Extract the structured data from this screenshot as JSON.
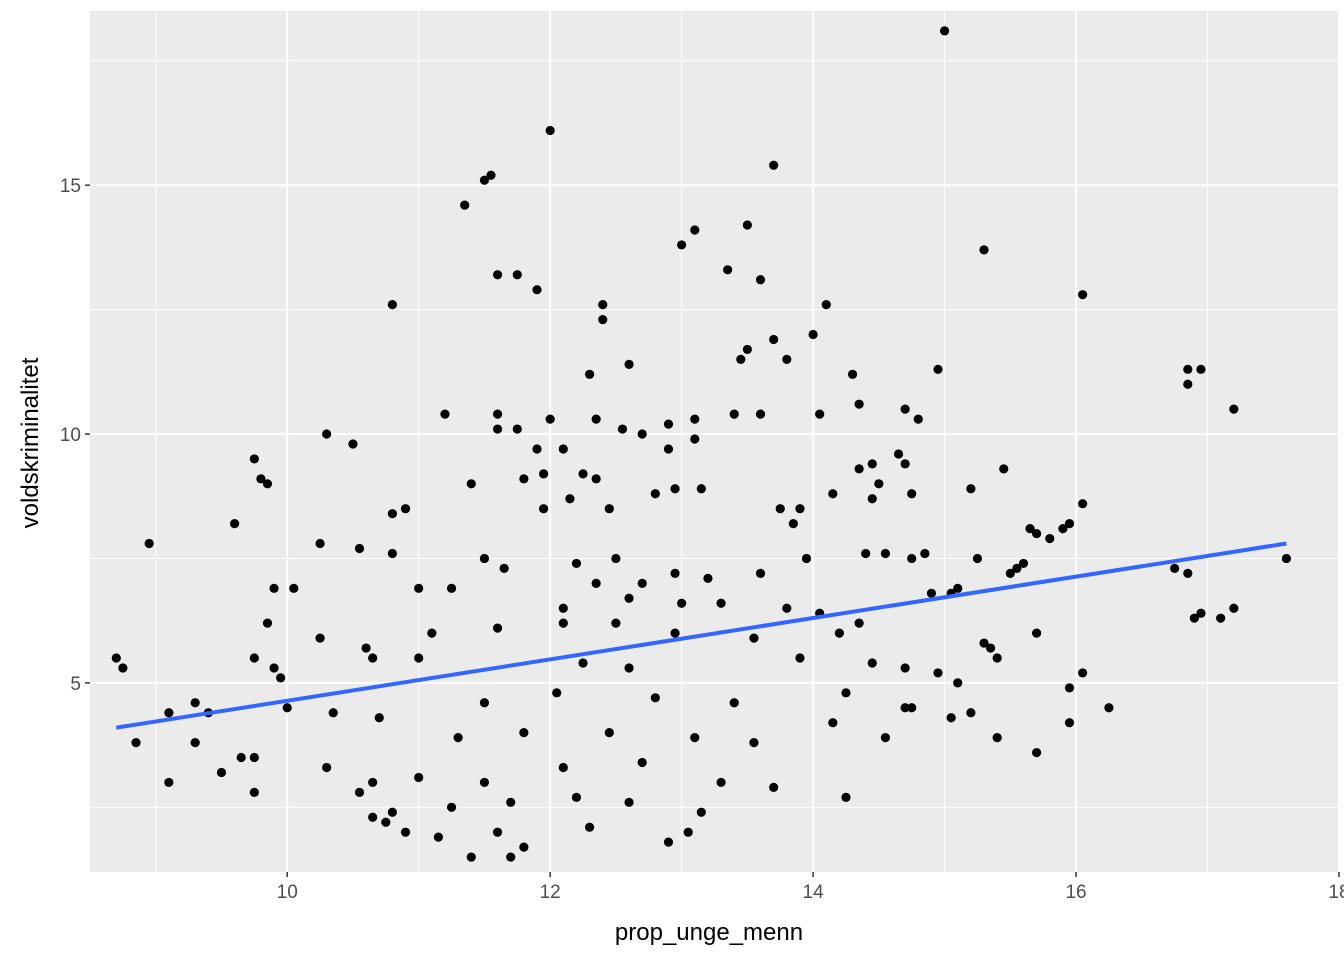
{
  "chart_data": {
    "type": "scatter",
    "xlabel": "prop_unge_menn",
    "ylabel": "voldskriminalitet",
    "xlim": [
      8.5,
      18.0
    ],
    "ylim": [
      1.2,
      18.5
    ],
    "x_ticks": [
      10,
      12,
      14,
      16,
      18
    ],
    "y_ticks": [
      5,
      10,
      15
    ],
    "grid": true,
    "panel_color": "#ebebeb",
    "grid_color": "#ffffff",
    "point_color": "#000000",
    "trend_color": "#3366ff",
    "trend_line": {
      "x": [
        8.7,
        17.6
      ],
      "y": [
        4.1,
        7.8
      ]
    },
    "points": [
      [
        15.0,
        18.1
      ],
      [
        12.0,
        16.1
      ],
      [
        11.5,
        15.1
      ],
      [
        11.55,
        15.2
      ],
      [
        13.7,
        15.4
      ],
      [
        11.35,
        14.6
      ],
      [
        13.5,
        14.2
      ],
      [
        13.1,
        14.1
      ],
      [
        13.0,
        13.8
      ],
      [
        15.3,
        13.7
      ],
      [
        11.6,
        13.2
      ],
      [
        11.75,
        13.2
      ],
      [
        13.35,
        13.3
      ],
      [
        13.6,
        13.1
      ],
      [
        11.9,
        12.9
      ],
      [
        16.05,
        12.8
      ],
      [
        10.8,
        12.6
      ],
      [
        12.4,
        12.6
      ],
      [
        14.1,
        12.6
      ],
      [
        12.4,
        12.3
      ],
      [
        14.0,
        12.0
      ],
      [
        13.7,
        11.9
      ],
      [
        13.5,
        11.7
      ],
      [
        13.45,
        11.5
      ],
      [
        13.8,
        11.5
      ],
      [
        12.6,
        11.4
      ],
      [
        14.95,
        11.3
      ],
      [
        16.85,
        11.3
      ],
      [
        16.95,
        11.3
      ],
      [
        12.3,
        11.2
      ],
      [
        14.3,
        11.2
      ],
      [
        16.85,
        11.0
      ],
      [
        14.35,
        10.6
      ],
      [
        17.2,
        10.5
      ],
      [
        14.7,
        10.5
      ],
      [
        11.2,
        10.4
      ],
      [
        11.6,
        10.4
      ],
      [
        13.4,
        10.4
      ],
      [
        13.6,
        10.4
      ],
      [
        14.05,
        10.4
      ],
      [
        14.8,
        10.3
      ],
      [
        12.0,
        10.3
      ],
      [
        12.35,
        10.3
      ],
      [
        13.1,
        10.3
      ],
      [
        12.9,
        10.2
      ],
      [
        11.6,
        10.1
      ],
      [
        11.75,
        10.1
      ],
      [
        12.55,
        10.1
      ],
      [
        12.7,
        10.0
      ],
      [
        10.3,
        10.0
      ],
      [
        13.1,
        9.9
      ],
      [
        10.5,
        9.8
      ],
      [
        12.9,
        9.7
      ],
      [
        11.9,
        9.7
      ],
      [
        12.1,
        9.7
      ],
      [
        9.75,
        9.5
      ],
      [
        11.95,
        9.2
      ],
      [
        12.25,
        9.2
      ],
      [
        12.35,
        9.1
      ],
      [
        11.4,
        9.0
      ],
      [
        11.8,
        9.1
      ],
      [
        9.8,
        9.1
      ],
      [
        9.85,
        9.0
      ],
      [
        15.45,
        9.3
      ],
      [
        14.35,
        9.3
      ],
      [
        14.45,
        9.4
      ],
      [
        14.65,
        9.6
      ],
      [
        14.7,
        9.4
      ],
      [
        14.5,
        9.0
      ],
      [
        12.8,
        8.8
      ],
      [
        12.95,
        8.9
      ],
      [
        13.15,
        8.9
      ],
      [
        12.15,
        8.7
      ],
      [
        11.95,
        8.5
      ],
      [
        12.45,
        8.5
      ],
      [
        13.75,
        8.5
      ],
      [
        13.9,
        8.5
      ],
      [
        10.8,
        8.4
      ],
      [
        10.9,
        8.5
      ],
      [
        14.15,
        8.8
      ],
      [
        14.45,
        8.7
      ],
      [
        14.75,
        8.8
      ],
      [
        15.2,
        8.9
      ],
      [
        16.05,
        8.6
      ],
      [
        13.85,
        8.2
      ],
      [
        9.6,
        8.2
      ],
      [
        15.65,
        8.1
      ],
      [
        15.9,
        8.1
      ],
      [
        15.95,
        8.2
      ],
      [
        15.7,
        8.0
      ],
      [
        15.8,
        7.9
      ],
      [
        8.95,
        7.8
      ],
      [
        10.25,
        7.8
      ],
      [
        10.55,
        7.7
      ],
      [
        10.8,
        7.6
      ],
      [
        12.5,
        7.5
      ],
      [
        12.2,
        7.4
      ],
      [
        11.65,
        7.3
      ],
      [
        11.5,
        7.5
      ],
      [
        14.4,
        7.6
      ],
      [
        14.55,
        7.6
      ],
      [
        14.75,
        7.5
      ],
      [
        14.85,
        7.6
      ],
      [
        13.95,
        7.5
      ],
      [
        13.6,
        7.2
      ],
      [
        13.2,
        7.1
      ],
      [
        12.35,
        7.0
      ],
      [
        12.7,
        7.0
      ],
      [
        12.95,
        7.2
      ],
      [
        11.0,
        6.9
      ],
      [
        11.25,
        6.9
      ],
      [
        15.25,
        7.5
      ],
      [
        15.5,
        7.2
      ],
      [
        15.55,
        7.3
      ],
      [
        15.6,
        7.4
      ],
      [
        16.75,
        7.3
      ],
      [
        16.85,
        7.2
      ],
      [
        17.6,
        7.5
      ],
      [
        9.9,
        6.9
      ],
      [
        10.05,
        6.9
      ],
      [
        12.1,
        6.5
      ],
      [
        12.6,
        6.7
      ],
      [
        13.0,
        6.6
      ],
      [
        13.3,
        6.6
      ],
      [
        13.8,
        6.5
      ],
      [
        14.05,
        6.4
      ],
      [
        14.9,
        6.8
      ],
      [
        15.05,
        6.8
      ],
      [
        15.1,
        6.9
      ],
      [
        16.95,
        6.4
      ],
      [
        16.9,
        6.3
      ],
      [
        17.1,
        6.3
      ],
      [
        17.2,
        6.5
      ],
      [
        9.85,
        6.2
      ],
      [
        11.1,
        6.0
      ],
      [
        11.6,
        6.1
      ],
      [
        12.1,
        6.2
      ],
      [
        12.5,
        6.2
      ],
      [
        12.95,
        6.0
      ],
      [
        13.55,
        5.9
      ],
      [
        14.2,
        6.0
      ],
      [
        14.35,
        6.2
      ],
      [
        15.3,
        5.8
      ],
      [
        15.35,
        5.7
      ],
      [
        15.7,
        6.0
      ],
      [
        15.4,
        5.5
      ],
      [
        10.25,
        5.9
      ],
      [
        10.6,
        5.7
      ],
      [
        10.65,
        5.5
      ],
      [
        11.0,
        5.5
      ],
      [
        12.25,
        5.4
      ],
      [
        12.6,
        5.3
      ],
      [
        13.9,
        5.5
      ],
      [
        14.45,
        5.4
      ],
      [
        14.7,
        5.3
      ],
      [
        14.95,
        5.2
      ],
      [
        8.7,
        5.5
      ],
      [
        8.75,
        5.3
      ],
      [
        9.75,
        5.5
      ],
      [
        9.9,
        5.3
      ],
      [
        9.95,
        5.1
      ],
      [
        16.05,
        5.2
      ],
      [
        15.95,
        4.9
      ],
      [
        15.1,
        5.0
      ],
      [
        10.0,
        4.5
      ],
      [
        11.5,
        4.6
      ],
      [
        12.05,
        4.8
      ],
      [
        12.8,
        4.7
      ],
      [
        13.4,
        4.6
      ],
      [
        14.25,
        4.8
      ],
      [
        14.75,
        4.5
      ],
      [
        14.7,
        4.5
      ],
      [
        16.25,
        4.5
      ],
      [
        15.2,
        4.4
      ],
      [
        15.05,
        4.3
      ],
      [
        15.95,
        4.2
      ],
      [
        9.1,
        4.4
      ],
      [
        9.3,
        4.6
      ],
      [
        9.4,
        4.4
      ],
      [
        8.85,
        3.8
      ],
      [
        9.3,
        3.8
      ],
      [
        10.35,
        4.4
      ],
      [
        10.7,
        4.3
      ],
      [
        11.3,
        3.9
      ],
      [
        11.8,
        4.0
      ],
      [
        12.45,
        4.0
      ],
      [
        13.1,
        3.9
      ],
      [
        13.55,
        3.8
      ],
      [
        14.15,
        4.2
      ],
      [
        14.55,
        3.9
      ],
      [
        15.4,
        3.9
      ],
      [
        15.7,
        3.6
      ],
      [
        9.1,
        3.0
      ],
      [
        9.5,
        3.2
      ],
      [
        9.65,
        3.5
      ],
      [
        9.75,
        3.5
      ],
      [
        9.75,
        2.8
      ],
      [
        10.3,
        3.3
      ],
      [
        10.65,
        3.0
      ],
      [
        11.0,
        3.1
      ],
      [
        11.5,
        3.0
      ],
      [
        12.1,
        3.3
      ],
      [
        12.7,
        3.4
      ],
      [
        13.3,
        3.0
      ],
      [
        13.7,
        2.9
      ],
      [
        14.25,
        2.7
      ],
      [
        10.55,
        2.8
      ],
      [
        10.8,
        2.4
      ],
      [
        11.25,
        2.5
      ],
      [
        11.7,
        2.6
      ],
      [
        12.2,
        2.7
      ],
      [
        12.6,
        2.6
      ],
      [
        13.15,
        2.4
      ],
      [
        10.65,
        2.3
      ],
      [
        10.75,
        2.2
      ],
      [
        10.9,
        2.0
      ],
      [
        11.15,
        1.9
      ],
      [
        11.6,
        2.0
      ],
      [
        11.8,
        1.7
      ],
      [
        12.3,
        2.1
      ],
      [
        12.9,
        1.8
      ],
      [
        13.05,
        2.0
      ],
      [
        11.4,
        1.5
      ],
      [
        11.7,
        1.5
      ]
    ]
  }
}
